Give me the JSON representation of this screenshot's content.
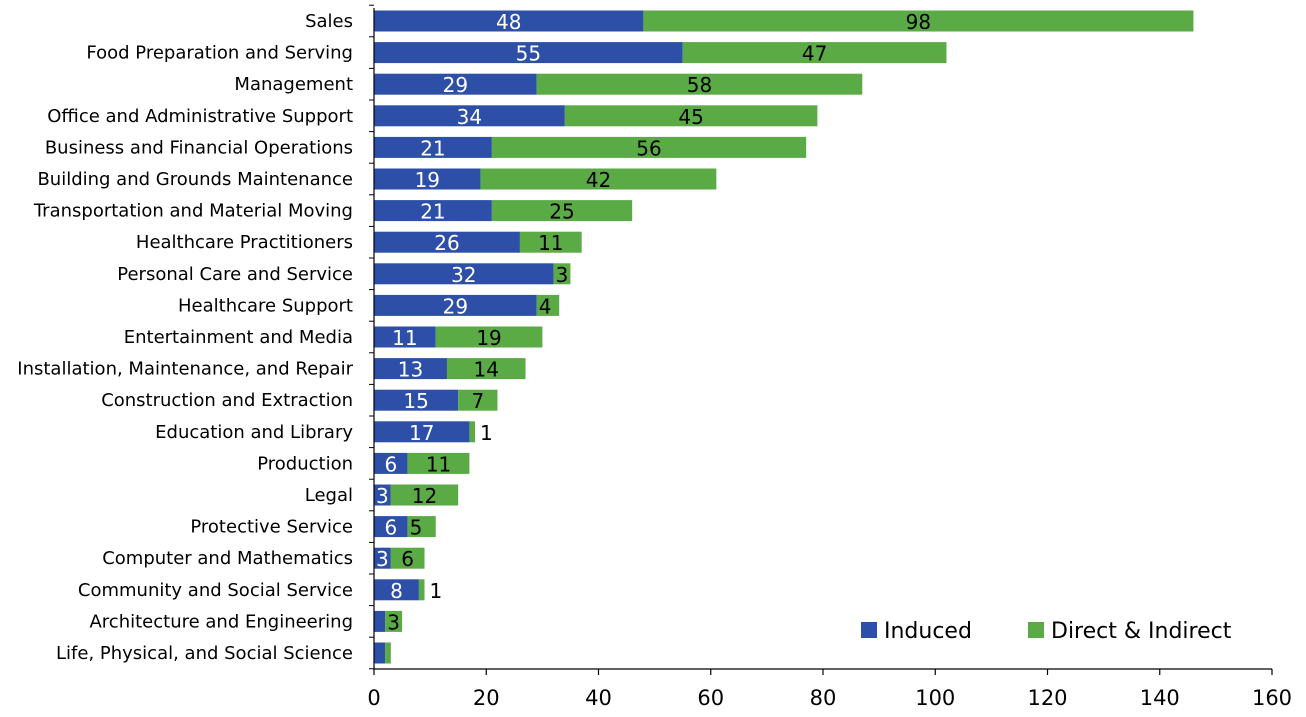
{
  "chart_data": {
    "type": "bar",
    "orientation": "horizontal",
    "stacked": true,
    "categories": [
      "Sales",
      "Food Preparation and Serving",
      "Management",
      "Office and Administrative Support",
      "Business and Financial Operations",
      "Building and Grounds Maintenance",
      "Transportation and Material Moving",
      "Healthcare Practitioners",
      "Personal Care and Service",
      "Healthcare Support",
      "Entertainment and Media",
      "Installation, Maintenance, and Repair",
      "Construction and Extraction",
      "Education and Library",
      "Production",
      "Legal",
      "Protective Service",
      "Computer and Mathematics",
      "Community and Social Service",
      "Architecture and Engineering",
      "Life, Physical, and Social Science"
    ],
    "series": [
      {
        "name": "Induced",
        "color": "#2e4fa8",
        "values": [
          48,
          55,
          29,
          34,
          21,
          19,
          21,
          26,
          32,
          29,
          11,
          13,
          15,
          17,
          6,
          3,
          6,
          3,
          8,
          2,
          2
        ],
        "labels": [
          "48",
          "55",
          "29",
          "34",
          "21",
          "19",
          "21",
          "26",
          "32",
          "29",
          "11",
          "13",
          "15",
          "17",
          "6",
          "3",
          "6",
          "3",
          "8",
          "",
          ""
        ]
      },
      {
        "name": "Direct & Indirect",
        "color": "#5aaa46",
        "values": [
          98,
          47,
          58,
          45,
          56,
          42,
          25,
          11,
          3,
          4,
          19,
          14,
          7,
          1,
          11,
          12,
          5,
          6,
          1,
          3,
          1
        ],
        "labels": [
          "98",
          "47",
          "58",
          "45",
          "56",
          "42",
          "25",
          "11",
          "3",
          "4",
          "19",
          "14",
          "7",
          "1",
          "11",
          "12",
          "5",
          "6",
          "1",
          "3",
          ""
        ]
      }
    ],
    "xlim": [
      0,
      160
    ],
    "xticks": [
      0,
      20,
      40,
      60,
      80,
      100,
      120,
      140,
      160
    ],
    "title": "",
    "xlabel": "",
    "ylabel": "",
    "grid": false,
    "legend_position": "bottom-right"
  }
}
